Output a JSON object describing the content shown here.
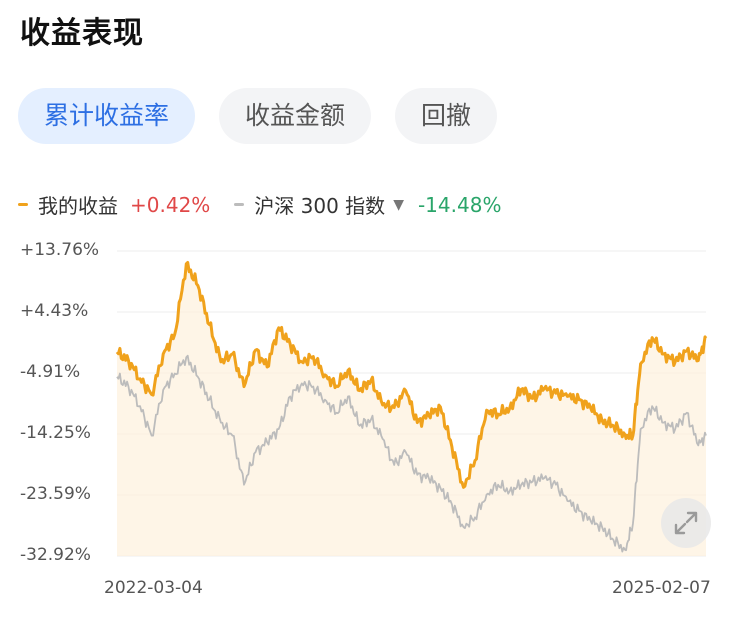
{
  "header": {
    "title": "收益表现"
  },
  "tabs": [
    {
      "label": "累计收益率",
      "active": true
    },
    {
      "label": "收益金额",
      "active": false
    },
    {
      "label": "回撤",
      "active": false
    }
  ],
  "legend": {
    "mine": {
      "name": "我的收益",
      "value": "+0.42%",
      "color": "#f0a21c"
    },
    "index": {
      "name": "沪深 300 指数",
      "value": "-14.48%",
      "color": "#bcbcbc"
    }
  },
  "chart_data": {
    "type": "line",
    "title": "",
    "xlabel": "",
    "ylabel": "",
    "y_tick_labels": [
      "+13.76%",
      "+4.43%",
      "-4.91%",
      "-14.25%",
      "-23.59%",
      "-32.92%"
    ],
    "y_ticks": [
      13.76,
      4.43,
      -4.91,
      -14.25,
      -23.59,
      -32.92
    ],
    "ylim": [
      -32.92,
      13.76
    ],
    "x_tick_labels": [
      "2022-03-04",
      "2025-02-07"
    ],
    "x_range": [
      "2022-03-04",
      "2025-02-07"
    ],
    "grid": true,
    "fill_under_primary": true,
    "series": [
      {
        "name": "我的收益",
        "color": "#f0a21c",
        "x": [
          "2022-03-04",
          "2022-03-25",
          "2022-04-15",
          "2022-05-06",
          "2022-05-27",
          "2022-06-17",
          "2022-07-08",
          "2022-07-29",
          "2022-08-19",
          "2022-09-09",
          "2022-09-30",
          "2022-10-21",
          "2022-11-11",
          "2022-12-02",
          "2022-12-23",
          "2023-01-13",
          "2023-02-03",
          "2023-02-24",
          "2023-03-17",
          "2023-04-07",
          "2023-04-28",
          "2023-05-19",
          "2023-06-09",
          "2023-06-30",
          "2023-07-21",
          "2023-08-11",
          "2023-09-01",
          "2023-09-22",
          "2023-10-13",
          "2023-11-03",
          "2023-11-24",
          "2023-12-15",
          "2024-01-05",
          "2024-01-26",
          "2024-02-16",
          "2024-03-08",
          "2024-03-29",
          "2024-04-19",
          "2024-05-10",
          "2024-05-31",
          "2024-06-21",
          "2024-07-12",
          "2024-08-02",
          "2024-08-23",
          "2024-09-13",
          "2024-09-27",
          "2024-10-11",
          "2024-11-01",
          "2024-11-22",
          "2024-12-13",
          "2025-01-03",
          "2025-01-24",
          "2025-02-07"
        ],
        "values": [
          -1.7,
          -3.0,
          -5.8,
          -8.2,
          -2.0,
          1.0,
          11.8,
          8.5,
          2.5,
          -3.2,
          -2.0,
          -7.0,
          -1.4,
          -4.0,
          2.0,
          -0.5,
          -3.2,
          -2.4,
          -5.2,
          -6.9,
          -4.5,
          -7.6,
          -6.0,
          -9.8,
          -10.2,
          -7.6,
          -12.5,
          -11.4,
          -10.1,
          -16.2,
          -22.4,
          -18.3,
          -10.6,
          -11.2,
          -10.3,
          -7.4,
          -8.8,
          -7.3,
          -8.0,
          -8.5,
          -9.0,
          -10.2,
          -12.2,
          -13.0,
          -14.4,
          -14.5,
          -3.5,
          0.5,
          -2.0,
          -3.2,
          -1.5,
          -3.0,
          0.42
        ]
      },
      {
        "name": "沪深 300 指数",
        "color": "#bcbcbc",
        "x": [
          "2022-03-04",
          "2022-03-25",
          "2022-04-15",
          "2022-05-06",
          "2022-05-27",
          "2022-06-17",
          "2022-07-08",
          "2022-07-29",
          "2022-08-19",
          "2022-09-09",
          "2022-09-30",
          "2022-10-21",
          "2022-11-11",
          "2022-12-02",
          "2022-12-23",
          "2023-01-13",
          "2023-02-03",
          "2023-02-24",
          "2023-03-17",
          "2023-04-07",
          "2023-04-28",
          "2023-05-19",
          "2023-06-09",
          "2023-06-30",
          "2023-07-21",
          "2023-08-11",
          "2023-09-01",
          "2023-09-22",
          "2023-10-13",
          "2023-11-03",
          "2023-11-24",
          "2023-12-15",
          "2024-01-05",
          "2024-01-26",
          "2024-02-16",
          "2024-03-08",
          "2024-03-29",
          "2024-04-19",
          "2024-05-10",
          "2024-05-31",
          "2024-06-21",
          "2024-07-12",
          "2024-08-02",
          "2024-08-23",
          "2024-09-13",
          "2024-09-27",
          "2024-10-11",
          "2024-11-01",
          "2024-11-22",
          "2024-12-13",
          "2025-01-03",
          "2025-01-24",
          "2025-02-07"
        ],
        "values": [
          -5.5,
          -7.0,
          -10.0,
          -14.5,
          -7.5,
          -5.0,
          -2.5,
          -5.5,
          -9.0,
          -12.5,
          -14.5,
          -22.0,
          -17.0,
          -15.5,
          -13.5,
          -8.5,
          -6.5,
          -7.0,
          -9.0,
          -11.0,
          -8.5,
          -13.0,
          -12.0,
          -15.0,
          -19.0,
          -17.0,
          -20.5,
          -21.0,
          -22.5,
          -25.0,
          -28.5,
          -27.0,
          -23.5,
          -22.0,
          -23.0,
          -22.0,
          -21.5,
          -21.0,
          -22.0,
          -24.5,
          -26.0,
          -27.5,
          -28.5,
          -30.5,
          -32.0,
          -28.0,
          -13.5,
          -10.0,
          -12.5,
          -13.5,
          -11.0,
          -16.0,
          -14.48
        ]
      }
    ]
  }
}
